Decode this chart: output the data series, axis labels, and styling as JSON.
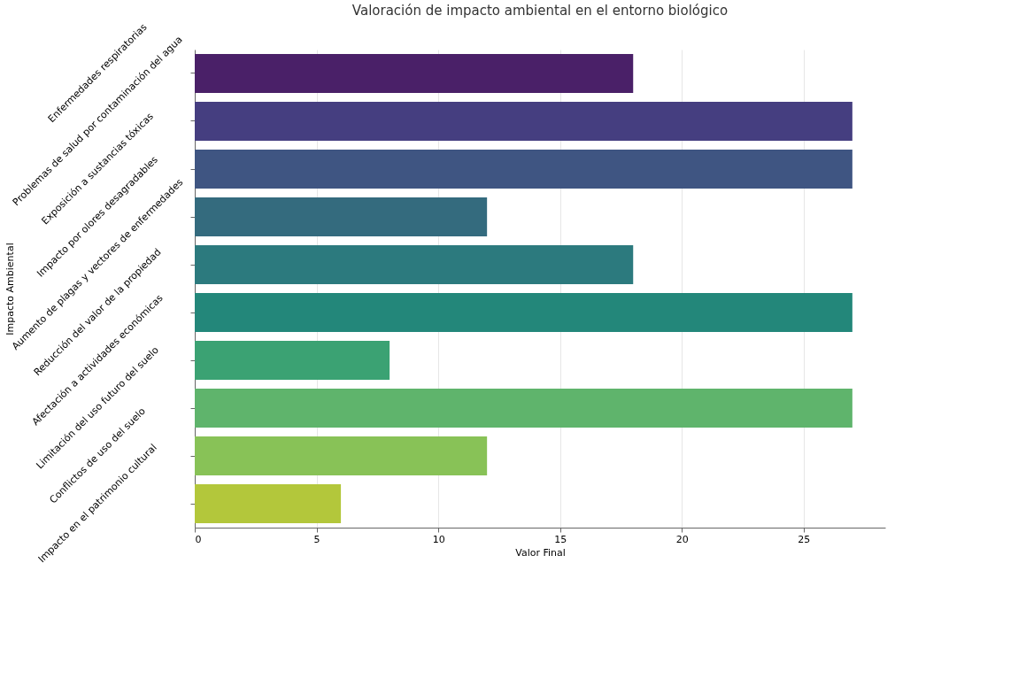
{
  "chart_data": {
    "type": "bar",
    "orientation": "horizontal",
    "title": "Valoración de impacto ambiental en el entorno biológico",
    "xlabel": "Valor Final",
    "ylabel": "Impacto Ambiental",
    "categories": [
      "Enfermedades respiratorias",
      "Problemas de salud por contaminación del agua",
      "Exposición a sustancias tóxicas",
      "Impacto por olores desagradables",
      "Aumento de plagas y vectores de enfermedades",
      "Reducción del valor de la propiedad",
      "Afectación a actividades económicas",
      "Limitación del uso futuro del suelo",
      "Conflictos de uso del suelo",
      "Impacto en el patrimonio cultural"
    ],
    "values": [
      18,
      27,
      27,
      12,
      18,
      27,
      8,
      27,
      12,
      6
    ],
    "colors": [
      "#4a2068",
      "#453e80",
      "#3f5582",
      "#346b7e",
      "#2c7a7e",
      "#23877a",
      "#3ba273",
      "#5fb46c",
      "#88c257",
      "#b3c73b"
    ],
    "xlim": [
      0,
      28.35
    ],
    "xticks": [
      0,
      5,
      10,
      15,
      20,
      25
    ],
    "grid": "x",
    "legend": false
  }
}
